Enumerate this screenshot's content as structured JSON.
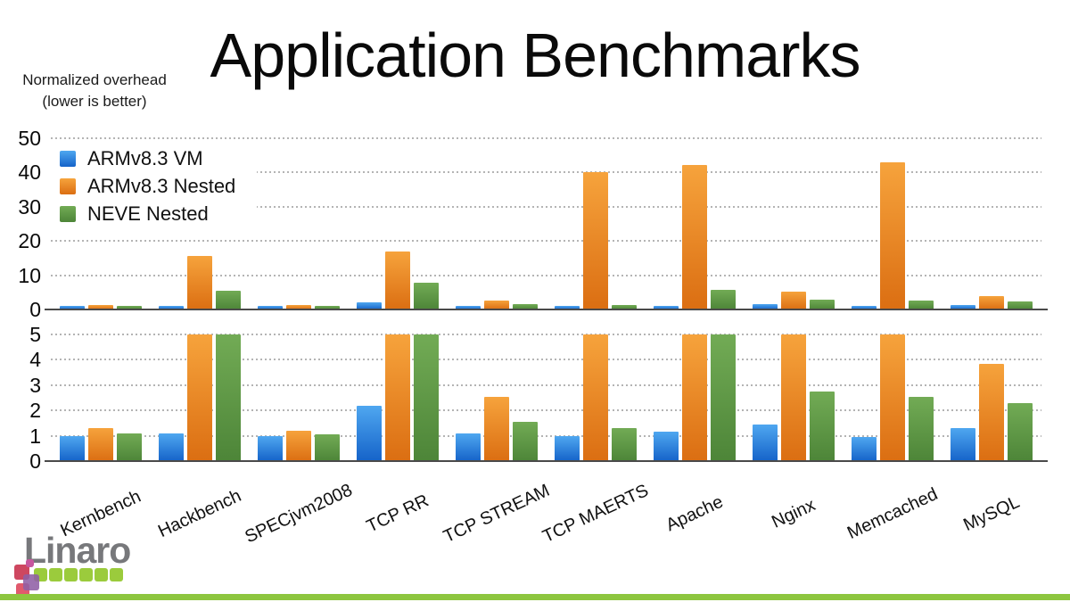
{
  "slide": {
    "title": "Application Benchmarks",
    "note_line1": "Normalized overhead",
    "note_line2": "(lower is better)"
  },
  "chart_data": {
    "type": "bar",
    "title": "Application Benchmarks",
    "ylabel": "Normalized overhead (lower is better)",
    "xlabel": "",
    "grid": "dotted horizontal",
    "legend_position": "top-left",
    "categories": [
      "Kernbench",
      "Hackbench",
      "SPECjvm2008",
      "TCP RR",
      "TCP STREAM",
      "TCP MAERTS",
      "Apache",
      "Nginx",
      "Memcached",
      "MySQL"
    ],
    "series": [
      {
        "name": "ARMv8.3 VM",
        "color_top": "#4fa7f0",
        "color_bottom": "#1563c9",
        "values": [
          1.0,
          1.1,
          1.0,
          2.2,
          1.1,
          1.0,
          1.15,
          1.45,
          0.95,
          1.3
        ]
      },
      {
        "name": "ARMv8.3 Nested",
        "color_top": "#f6a33c",
        "color_bottom": "#db6e12",
        "values": [
          1.3,
          15.5,
          1.2,
          17.0,
          2.55,
          40.2,
          42.2,
          5.3,
          43.0,
          3.85
        ]
      },
      {
        "name": "NEVE Nested",
        "color_top": "#72ab55",
        "color_bottom": "#4d8538",
        "values": [
          1.1,
          5.4,
          1.05,
          7.8,
          1.55,
          1.3,
          5.8,
          2.75,
          2.55,
          2.3
        ]
      }
    ],
    "panels": [
      {
        "ylim": [
          0,
          50
        ],
        "ticks": [
          0,
          10,
          20,
          30,
          40,
          50
        ]
      },
      {
        "ylim": [
          0,
          5
        ],
        "ticks": [
          0,
          1,
          2,
          3,
          4,
          5
        ],
        "note": "values above 5 are clipped"
      }
    ]
  },
  "footer": {
    "logo_text": "Linaro"
  },
  "colors": {
    "grid": "#b4b4b4",
    "axis": "#4a4a4a",
    "footer_bar_green": "#8dc63f",
    "logo_square_green": "#9bcb3c",
    "logo_gray": "#77787b",
    "logo_crimson": "#ce4760",
    "logo_red_pink": "#e15a6d",
    "logo_purple": "#8f5fa5",
    "logo_magenta": "#c6579e"
  }
}
